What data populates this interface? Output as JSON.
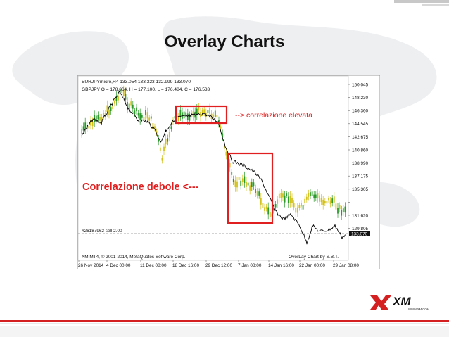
{
  "slide": {
    "title": "Overlay Charts"
  },
  "chart": {
    "header_line1": "EURJPYmicro,H4  133.054 133.323 132.999 133.070",
    "header_line2": "GBPJPY O = 178.864, H = 177.100, L = 176.484, C = 176.533",
    "position_label": "#26187962 sell 2.00",
    "footer_left": "XM MT4, © 2001-2014, MetaQuotes Software Corp.",
    "footer_right": "OverLay Chart by S.B.T.",
    "price_ticks": [
      "150.045",
      "148.230",
      "146.360",
      "144.545",
      "142.675",
      "140.860",
      "138.990",
      "137.175",
      "135.305",
      "133.490",
      "131.620",
      "129.805"
    ],
    "current_price": "133.070",
    "time_ticks": [
      "26 Nov 2014",
      "4 Dec 00:00",
      "11 Dec 08:00",
      "18 Dec 16:00",
      "29 Dec 12:00",
      "7 Jan 08:00",
      "14 Jan 16:00",
      "22 Jan 00:00",
      "29 Jan 08:00"
    ],
    "annotations": {
      "high_label": "--> correlazione elevata",
      "weak_label": "Correlazione debole  <---"
    },
    "colors": {
      "candle_up": "#2a9a2a",
      "candle_down": "#d4c21a",
      "overlay_line": "#000000",
      "highlight_box": "#e02020"
    }
  },
  "logo": {
    "brand": "XM",
    "url": "WWW.XM.COM"
  }
}
